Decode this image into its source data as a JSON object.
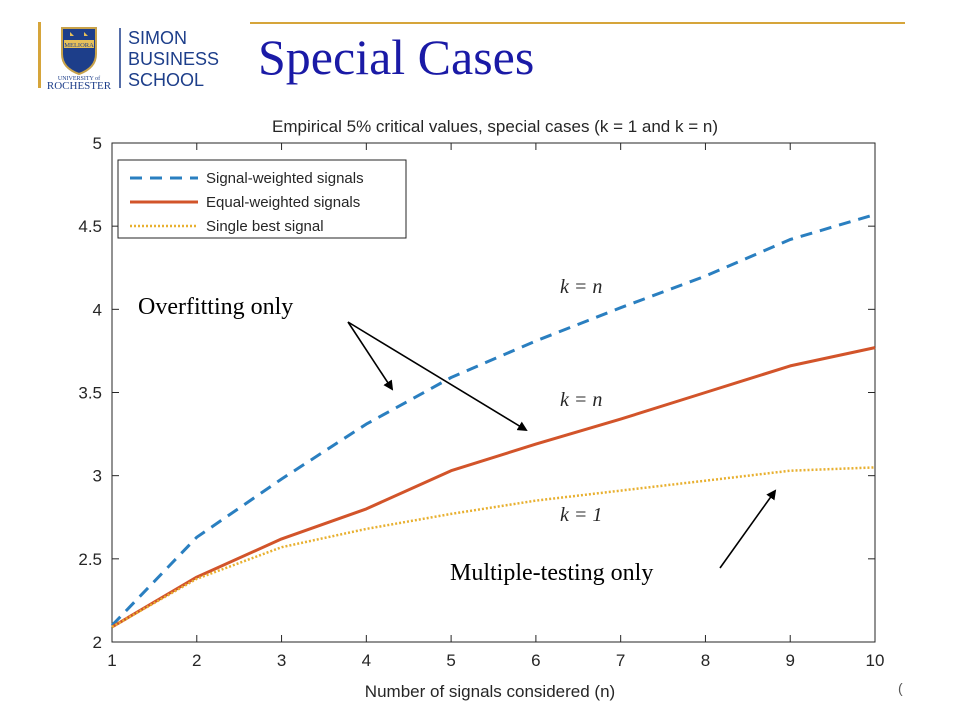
{
  "slide": {
    "title": "Special Cases",
    "logo": {
      "name": "University of Rochester Simon Business School",
      "lines": [
        "SIMON",
        "BUSINESS",
        "SCHOOL"
      ],
      "univ_small": "UNIVERSITY of",
      "univ_big": "ROCHESTER",
      "seal_text": "MELIORA"
    },
    "page_number_fragment": "("
  },
  "chart_data": {
    "type": "line",
    "title": "Empirical 5% critical values, special cases (k = 1 and k = n)",
    "xlabel": "Number of signals considered (n)",
    "ylabel": "",
    "x": [
      1,
      2,
      3,
      4,
      5,
      6,
      7,
      8,
      9,
      10
    ],
    "xlim": [
      1,
      10
    ],
    "ylim": [
      2,
      5
    ],
    "xticks": [
      "1",
      "2",
      "3",
      "4",
      "5",
      "6",
      "7",
      "8",
      "9",
      "10"
    ],
    "yticks": [
      "2",
      "2.5",
      "3",
      "3.5",
      "4",
      "4.5",
      "5"
    ],
    "grid": false,
    "legend_position": "top-left",
    "series": [
      {
        "name": "Signal-weighted signals",
        "style": "dashed",
        "color": "#2a7fc0",
        "values": [
          2.1,
          2.63,
          2.98,
          3.31,
          3.59,
          3.81,
          4.01,
          4.2,
          4.42,
          4.57
        ]
      },
      {
        "name": "Equal-weighted signals",
        "style": "solid",
        "color": "#d2542a",
        "values": [
          2.09,
          2.39,
          2.62,
          2.8,
          3.03,
          3.19,
          3.34,
          3.5,
          3.66,
          3.77
        ]
      },
      {
        "name": "Single best signal",
        "style": "dotted",
        "color": "#e8b030",
        "values": [
          2.09,
          2.38,
          2.57,
          2.68,
          2.77,
          2.85,
          2.91,
          2.97,
          3.03,
          3.05
        ]
      }
    ],
    "annotations": {
      "k_equals_n_top": "k = n",
      "k_equals_n_mid": "k = n",
      "k_equals_1": "k = 1",
      "overfitting": "Overfitting only",
      "multiple_testing": "Multiple-testing only"
    }
  }
}
